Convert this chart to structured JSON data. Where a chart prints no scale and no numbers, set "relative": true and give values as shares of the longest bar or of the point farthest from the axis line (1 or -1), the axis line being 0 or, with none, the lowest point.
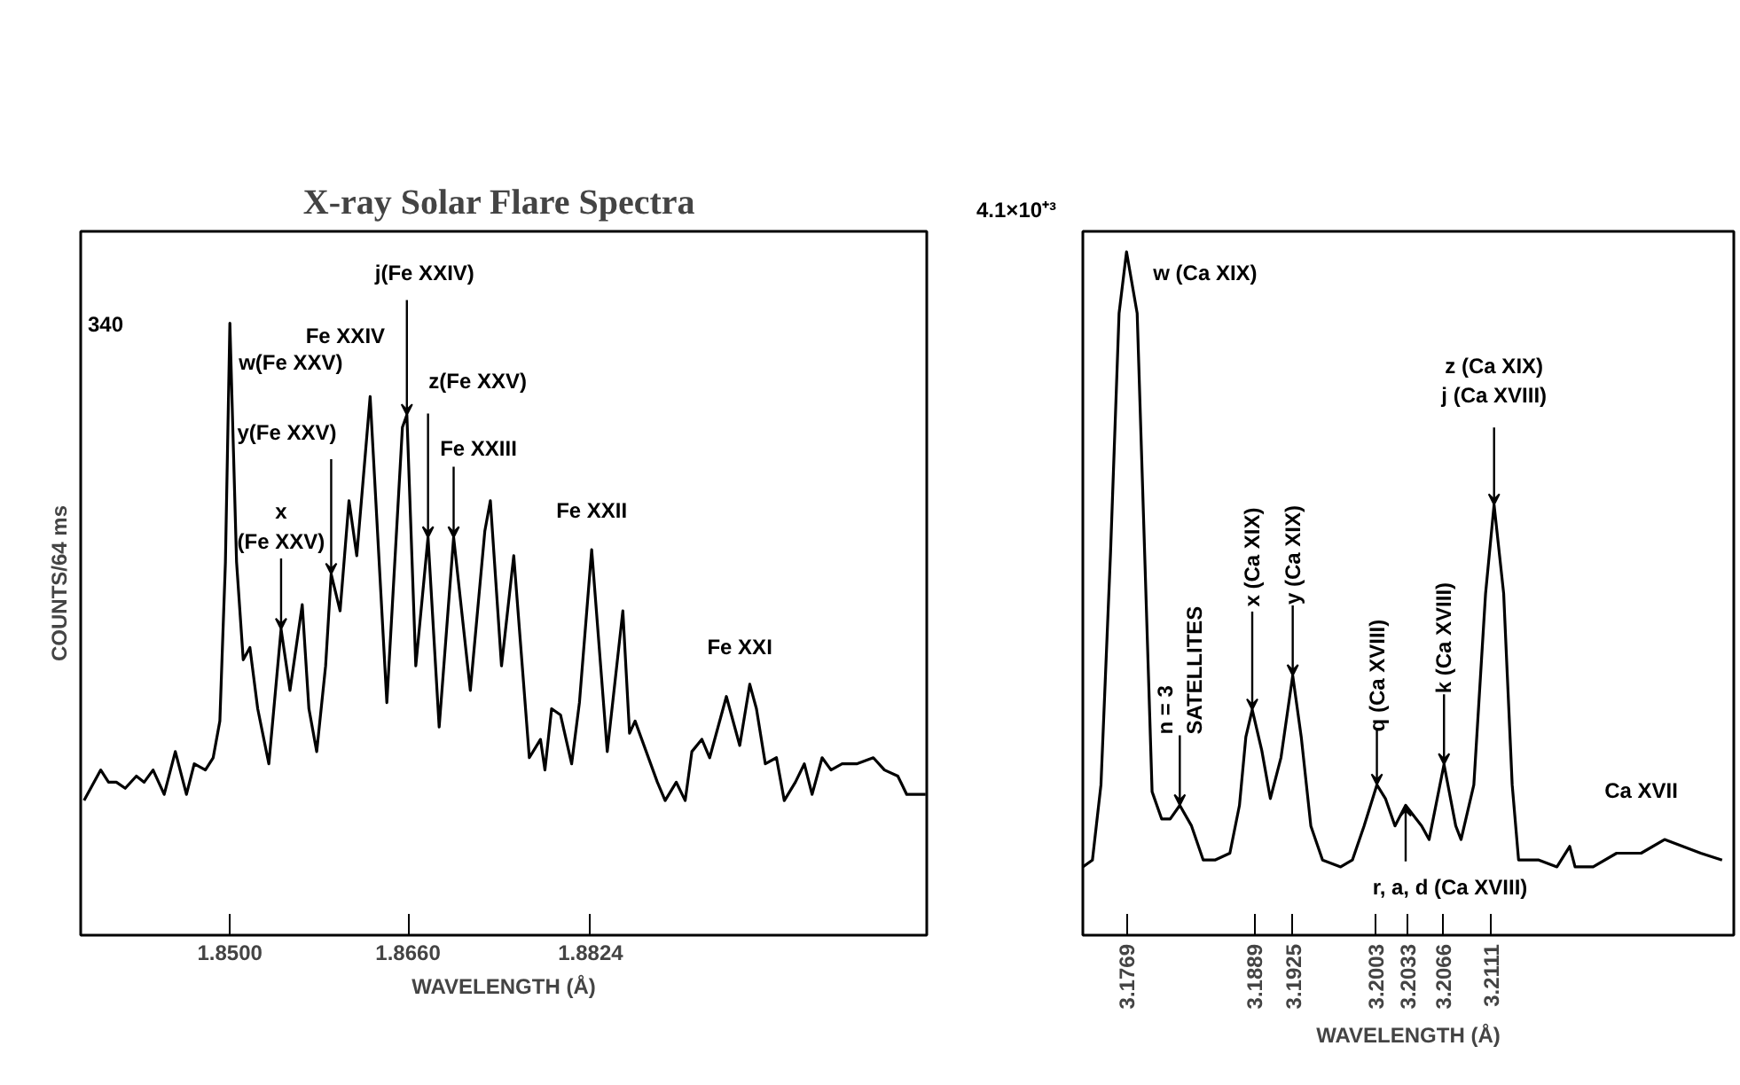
{
  "chart_data": [
    {
      "type": "line",
      "title": "X-ray  Solar Flare Spectra",
      "xlabel": "WAVELENGTH (Å)",
      "ylabel": "COUNTS/64 ms",
      "relative": true,
      "grid": false,
      "xlim": [
        1.8366,
        1.9126
      ],
      "xticks": [
        {
          "value": 1.85,
          "label": "1.8500"
        },
        {
          "value": 1.866,
          "label": "1.8660"
        },
        {
          "value": 1.8824,
          "label": "1.8824"
        }
      ],
      "x": [
        1.8369,
        1.8384,
        1.8391,
        1.8398,
        1.8406,
        1.8416,
        1.8423,
        1.8431,
        1.8441,
        1.8451,
        1.8461,
        1.8468,
        1.8478,
        1.8485,
        1.8491,
        1.8496,
        1.85,
        1.8506,
        1.8512,
        1.8518,
        1.8525,
        1.8535,
        1.8546,
        1.8554,
        1.8565,
        1.8571,
        1.8578,
        1.8586,
        1.8591,
        1.8599,
        1.8607,
        1.8614,
        1.8626,
        1.8641,
        1.8655,
        1.8659,
        1.8667,
        1.8678,
        1.8688,
        1.8701,
        1.8716,
        1.8729,
        1.8734,
        1.8744,
        1.8755,
        1.8769,
        1.8779,
        1.8783,
        1.8789,
        1.8797,
        1.8807,
        1.8814,
        1.8825,
        1.8839,
        1.8853,
        1.8859,
        1.8864,
        1.8874,
        1.8884,
        1.8891,
        1.8901,
        1.8909,
        1.8915,
        1.8924,
        1.8931,
        1.8946,
        1.8958,
        1.8967,
        1.8973,
        1.8981,
        1.8991,
        1.8998,
        1.9008,
        1.9016,
        1.9023,
        1.9032,
        1.904,
        1.905,
        1.9063,
        1.9078,
        1.9088,
        1.91,
        1.9108,
        1.9125
      ],
      "series": [
        {
          "color": "#000000",
          "values": [
            0.22,
            0.27,
            0.25,
            0.25,
            0.24,
            0.26,
            0.25,
            0.27,
            0.23,
            0.3,
            0.23,
            0.28,
            0.27,
            0.29,
            0.35,
            0.61,
            1.0,
            0.61,
            0.45,
            0.47,
            0.37,
            0.28,
            0.5,
            0.4,
            0.54,
            0.37,
            0.3,
            0.44,
            0.59,
            0.53,
            0.71,
            0.62,
            0.88,
            0.38,
            0.83,
            0.85,
            0.44,
            0.65,
            0.34,
            0.65,
            0.4,
            0.66,
            0.71,
            0.44,
            0.62,
            0.29,
            0.32,
            0.27,
            0.37,
            0.36,
            0.28,
            0.38,
            0.63,
            0.3,
            0.53,
            0.33,
            0.35,
            0.3,
            0.25,
            0.22,
            0.25,
            0.22,
            0.3,
            0.32,
            0.29,
            0.39,
            0.31,
            0.41,
            0.37,
            0.28,
            0.29,
            0.22,
            0.25,
            0.28,
            0.23,
            0.29,
            0.27,
            0.28,
            0.28,
            0.29,
            0.27,
            0.26,
            0.23,
            0.23
          ]
        }
      ],
      "annotations": [
        {
          "text": "w(Fe XXV)",
          "x": 1.85,
          "y": 1.0
        },
        {
          "text": "x\n(Fe XXV)",
          "x": 1.8546,
          "y": 0.5
        },
        {
          "text": "y(Fe XXV)",
          "x": 1.8591,
          "y": 0.59
        },
        {
          "text": "Fe XXIV",
          "x": 1.8626,
          "y": 0.88
        },
        {
          "text": "j(Fe XXIV)",
          "x": 1.8659,
          "y": 0.85
        },
        {
          "text": "z(Fe XXV)",
          "x": 1.8678,
          "y": 0.65
        },
        {
          "text": "Fe XXIII",
          "x": 1.8701,
          "y": 0.65
        },
        {
          "text": "Fe XXII",
          "x": 1.8825,
          "y": 0.63
        },
        {
          "text": "Fe XXI",
          "x": 1.8958,
          "y": 0.39
        },
        "340"
      ]
    },
    {
      "type": "line",
      "xlabel": "WAVELENGTH (Å)",
      "relative": true,
      "grid": false,
      "xlim": [
        3.1728,
        3.2339
      ],
      "xticks": [
        3.1769,
        3.1889,
        3.1925,
        3.2003,
        3.2033,
        3.2066,
        3.2111
      ],
      "x": [
        3.1728,
        3.1737,
        3.1745,
        3.1754,
        3.1762,
        3.1769,
        3.1779,
        3.1786,
        3.1793,
        3.1802,
        3.181,
        3.1819,
        3.183,
        3.1841,
        3.1852,
        3.1866,
        3.1875,
        3.1881,
        3.1887,
        3.1896,
        3.1904,
        3.1914,
        3.1925,
        3.1933,
        3.1942,
        3.1953,
        3.197,
        3.1981,
        3.1992,
        3.2004,
        3.2012,
        3.2021,
        3.2031,
        3.2046,
        3.2053,
        3.2067,
        3.2078,
        3.2083,
        3.2095,
        3.2106,
        3.2114,
        3.2123,
        3.2131,
        3.2137,
        3.2156,
        3.2173,
        3.2185,
        3.219,
        3.2207,
        3.2229,
        3.2252,
        3.2274,
        3.2291,
        3.2308,
        3.2328
      ],
      "series": [
        {
          "color": "#000000",
          "values": [
            0.1,
            0.11,
            0.22,
            0.56,
            0.91,
            1.0,
            0.91,
            0.56,
            0.21,
            0.17,
            0.17,
            0.19,
            0.16,
            0.11,
            0.11,
            0.12,
            0.19,
            0.29,
            0.33,
            0.27,
            0.2,
            0.26,
            0.38,
            0.29,
            0.16,
            0.11,
            0.1,
            0.11,
            0.16,
            0.22,
            0.2,
            0.16,
            0.19,
            0.16,
            0.14,
            0.25,
            0.16,
            0.14,
            0.22,
            0.5,
            0.63,
            0.5,
            0.22,
            0.11,
            0.11,
            0.1,
            0.13,
            0.1,
            0.1,
            0.12,
            0.12,
            0.14,
            0.13,
            0.12,
            0.11
          ]
        }
      ],
      "annotations": [
        {
          "text": "w (Ca XIX)",
          "x": 3.1769,
          "y": 1.0
        },
        {
          "text": "n = 3\nSATELLITES",
          "x": 3.1819,
          "y": 0.19
        },
        {
          "text": "x (Ca XIX)",
          "x": 3.1887,
          "y": 0.33
        },
        {
          "text": "y (Ca XIX)",
          "x": 3.1925,
          "y": 0.38
        },
        {
          "text": "q (Ca XVIII)",
          "x": 3.2004,
          "y": 0.22
        },
        {
          "text": "r, a, d (Ca XVIII)",
          "x": 3.2031,
          "y": 0.19
        },
        {
          "text": "k (Ca XVIII)",
          "x": 3.2067,
          "y": 0.25
        },
        {
          "text": "z (Ca XIX)\nj (Ca XVIII)",
          "x": 3.2114,
          "y": 0.63
        },
        {
          "text": "Ca XVII",
          "x": 3.2252,
          "y": 0.12
        },
        "4.1×10⁺³"
      ]
    }
  ]
}
